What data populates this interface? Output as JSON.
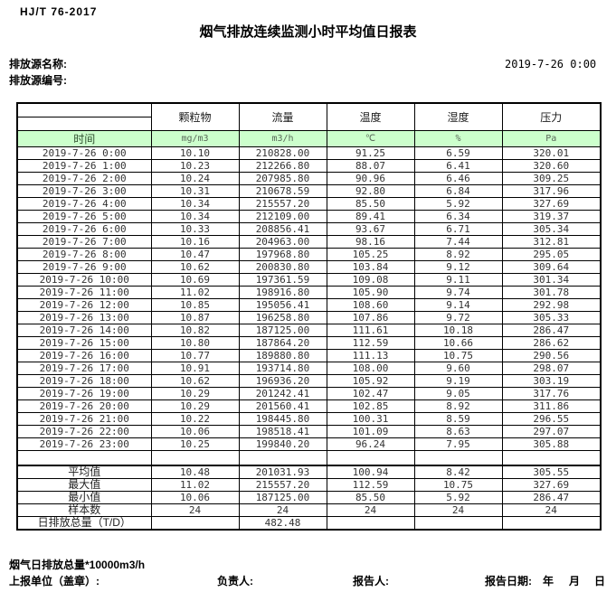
{
  "page": {
    "standard_code": "HJ/T  76-2017",
    "title": "烟气排放连续监测小时平均值日报表",
    "source_name_label": "排放源名称:",
    "source_id_label": "排放源编号:",
    "report_datetime": "2019-7-26  0:00"
  },
  "table": {
    "time_header": "时间",
    "columns": [
      {
        "name": "颗粒物",
        "unit": "mg/m3"
      },
      {
        "name": "流量",
        "unit": "m3/h"
      },
      {
        "name": "温度",
        "unit": "℃"
      },
      {
        "name": "湿度",
        "unit": "%"
      },
      {
        "name": "压力",
        "unit": "Pa"
      }
    ],
    "rows": [
      {
        "time": "2019-7-26  0:00",
        "values": [
          "10.10",
          "210828.00",
          "91.25",
          "6.59",
          "320.01"
        ]
      },
      {
        "time": "2019-7-26  1:00",
        "values": [
          "10.23",
          "212266.80",
          "88.07",
          "6.41",
          "320.60"
        ]
      },
      {
        "time": "2019-7-26  2:00",
        "values": [
          "10.24",
          "207985.80",
          "90.96",
          "6.46",
          "309.25"
        ]
      },
      {
        "time": "2019-7-26  3:00",
        "values": [
          "10.31",
          "210678.59",
          "92.80",
          "6.84",
          "317.96"
        ]
      },
      {
        "time": "2019-7-26  4:00",
        "values": [
          "10.34",
          "215557.20",
          "85.50",
          "5.92",
          "327.69"
        ]
      },
      {
        "time": "2019-7-26  5:00",
        "values": [
          "10.34",
          "212109.00",
          "89.41",
          "6.34",
          "319.37"
        ]
      },
      {
        "time": "2019-7-26  6:00",
        "values": [
          "10.33",
          "208856.41",
          "93.67",
          "6.71",
          "305.34"
        ]
      },
      {
        "time": "2019-7-26  7:00",
        "values": [
          "10.16",
          "204963.00",
          "98.16",
          "7.44",
          "312.81"
        ]
      },
      {
        "time": "2019-7-26  8:00",
        "values": [
          "10.47",
          "197968.80",
          "105.25",
          "8.92",
          "295.05"
        ]
      },
      {
        "time": "2019-7-26  9:00",
        "values": [
          "10.62",
          "200830.80",
          "103.84",
          "9.12",
          "309.64"
        ]
      },
      {
        "time": "2019-7-26 10:00",
        "values": [
          "10.69",
          "197361.59",
          "109.08",
          "9.11",
          "301.34"
        ]
      },
      {
        "time": "2019-7-26 11:00",
        "values": [
          "11.02",
          "198916.80",
          "105.90",
          "9.74",
          "301.78"
        ]
      },
      {
        "time": "2019-7-26 12:00",
        "values": [
          "10.85",
          "195056.41",
          "108.60",
          "9.14",
          "292.98"
        ]
      },
      {
        "time": "2019-7-26 13:00",
        "values": [
          "10.87",
          "196258.80",
          "107.86",
          "9.72",
          "305.33"
        ]
      },
      {
        "time": "2019-7-26 14:00",
        "values": [
          "10.82",
          "187125.00",
          "111.61",
          "10.18",
          "286.47"
        ]
      },
      {
        "time": "2019-7-26 15:00",
        "values": [
          "10.80",
          "187864.20",
          "112.59",
          "10.66",
          "286.62"
        ]
      },
      {
        "time": "2019-7-26 16:00",
        "values": [
          "10.77",
          "189880.80",
          "111.13",
          "10.75",
          "290.56"
        ]
      },
      {
        "time": "2019-7-26 17:00",
        "values": [
          "10.91",
          "193714.80",
          "108.00",
          "9.60",
          "298.07"
        ]
      },
      {
        "time": "2019-7-26 18:00",
        "values": [
          "10.62",
          "196936.20",
          "105.92",
          "9.19",
          "303.19"
        ]
      },
      {
        "time": "2019-7-26 19:00",
        "values": [
          "10.29",
          "201242.41",
          "102.47",
          "9.05",
          "317.76"
        ]
      },
      {
        "time": "2019-7-26 20:00",
        "values": [
          "10.29",
          "201560.41",
          "102.85",
          "8.92",
          "311.86"
        ]
      },
      {
        "time": "2019-7-26 21:00",
        "values": [
          "10.22",
          "198445.80",
          "100.31",
          "8.59",
          "296.55"
        ]
      },
      {
        "time": "2019-7-26 22:00",
        "values": [
          "10.06",
          "198518.41",
          "101.09",
          "8.63",
          "297.07"
        ]
      },
      {
        "time": "2019-7-26 23:00",
        "values": [
          "10.25",
          "199840.20",
          "96.24",
          "7.95",
          "305.88"
        ]
      }
    ],
    "summary": [
      {
        "label": "平均值",
        "values": [
          "10.48",
          "201031.93",
          "100.94",
          "8.42",
          "305.55"
        ]
      },
      {
        "label": "最大值",
        "values": [
          "11.02",
          "215557.20",
          "112.59",
          "10.75",
          "327.69"
        ]
      },
      {
        "label": "最小值",
        "values": [
          "10.06",
          "187125.00",
          "85.50",
          "5.92",
          "286.47"
        ]
      },
      {
        "label": "样本数",
        "values": [
          "24",
          "24",
          "24",
          "24",
          "24"
        ]
      },
      {
        "label": "日排放总量（T/D）",
        "values": [
          "",
          "482.48",
          "",
          "",
          ""
        ]
      }
    ]
  },
  "footer": {
    "note": "烟气日排放总量*10000m3/h",
    "report_unit_label": "上报单位（盖章）:",
    "responsible_label": "负责人:",
    "reporter_label": "报告人:",
    "report_date_label": "报告日期:",
    "year_label": "年",
    "month_label": "月",
    "day_label": "日"
  },
  "colors": {
    "header_green": "#ccffcc",
    "border": "#000000",
    "background": "#ffffff"
  }
}
